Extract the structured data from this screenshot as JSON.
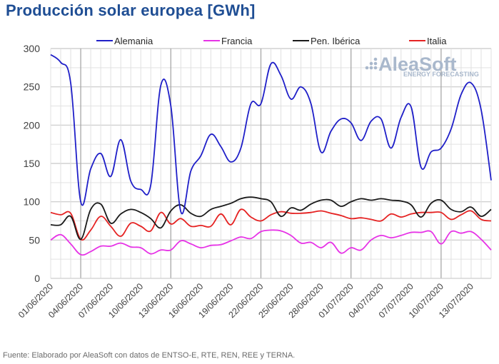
{
  "title": "Producción solar europea [GWh]",
  "source": "Fuente: Elaborado por AleaSoft con datos de ENTSO-E, RTE, REN, REE y TERNA.",
  "watermark": {
    "brand": "AleaSoft",
    "tagline": "ENERGY FORECASTING"
  },
  "chart_data": {
    "type": "line",
    "title": "Producción solar europea [GWh]",
    "xlabel": "",
    "ylabel": "",
    "ylim": [
      0,
      300
    ],
    "yticks": [
      0,
      50,
      100,
      150,
      200,
      250,
      300
    ],
    "grid": true,
    "legend_position": "top",
    "x": [
      "01/06/2020",
      "02/06/2020",
      "03/06/2020",
      "04/06/2020",
      "05/06/2020",
      "06/06/2020",
      "07/06/2020",
      "08/06/2020",
      "09/06/2020",
      "10/06/2020",
      "11/06/2020",
      "12/06/2020",
      "13/06/2020",
      "14/06/2020",
      "15/06/2020",
      "16/06/2020",
      "17/06/2020",
      "18/06/2020",
      "19/06/2020",
      "20/06/2020",
      "21/06/2020",
      "22/06/2020",
      "23/06/2020",
      "24/06/2020",
      "25/06/2020",
      "26/06/2020",
      "27/06/2020",
      "28/06/2020",
      "29/06/2020",
      "30/06/2020",
      "01/07/2020",
      "02/07/2020",
      "03/07/2020",
      "04/07/2020",
      "05/07/2020",
      "06/07/2020",
      "07/07/2020",
      "08/07/2020",
      "09/07/2020",
      "10/07/2020",
      "11/07/2020",
      "12/07/2020",
      "13/07/2020",
      "14/07/2020",
      "15/07/2020"
    ],
    "xtick_labels": [
      "01/06/2020",
      "04/06/2020",
      "07/06/2020",
      "10/06/2020",
      "13/06/2020",
      "16/06/2020",
      "19/06/2020",
      "22/06/2020",
      "25/06/2020",
      "28/06/2020",
      "01/07/2020",
      "04/07/2020",
      "07/07/2020",
      "10/07/2020",
      "13/07/2020"
    ],
    "series": [
      {
        "name": "Alemania",
        "color": "#1f1fc8",
        "values": [
          292,
          282,
          255,
          100,
          143,
          163,
          133,
          181,
          127,
          116,
          122,
          252,
          225,
          87,
          140,
          160,
          188,
          172,
          152,
          170,
          228,
          228,
          280,
          265,
          234,
          250,
          228,
          165,
          192,
          208,
          203,
          180,
          205,
          208,
          170,
          210,
          224,
          145,
          165,
          170,
          195,
          240,
          255,
          220,
          128
        ]
      },
      {
        "name": "Francia",
        "color": "#e633e6",
        "values": [
          50,
          57,
          45,
          31,
          35,
          42,
          42,
          46,
          41,
          40,
          32,
          37,
          37,
          49,
          45,
          40,
          43,
          44,
          49,
          54,
          52,
          61,
          63,
          62,
          56,
          46,
          47,
          40,
          47,
          33,
          40,
          37,
          50,
          56,
          53,
          56,
          60,
          60,
          61,
          45,
          61,
          59,
          61,
          51,
          37
        ]
      },
      {
        "name": "Pen. Ibérica",
        "color": "#1a1a1a",
        "values": [
          70,
          70,
          81,
          51,
          90,
          97,
          72,
          84,
          90,
          86,
          78,
          66,
          88,
          96,
          85,
          81,
          90,
          94,
          98,
          104,
          106,
          104,
          100,
          81,
          92,
          89,
          97,
          102,
          102,
          94,
          100,
          104,
          102,
          104,
          102,
          101,
          96,
          80,
          98,
          102,
          90,
          87,
          93,
          81,
          90
        ]
      },
      {
        "name": "Italia",
        "color": "#e52222",
        "values": [
          86,
          83,
          85,
          51,
          63,
          81,
          68,
          55,
          72,
          68,
          62,
          86,
          71,
          78,
          68,
          69,
          68,
          84,
          70,
          90,
          80,
          75,
          83,
          87,
          85,
          85,
          86,
          88,
          85,
          82,
          78,
          79,
          77,
          75,
          84,
          80,
          84,
          86,
          86,
          86,
          77,
          83,
          88,
          77,
          75
        ]
      }
    ]
  }
}
